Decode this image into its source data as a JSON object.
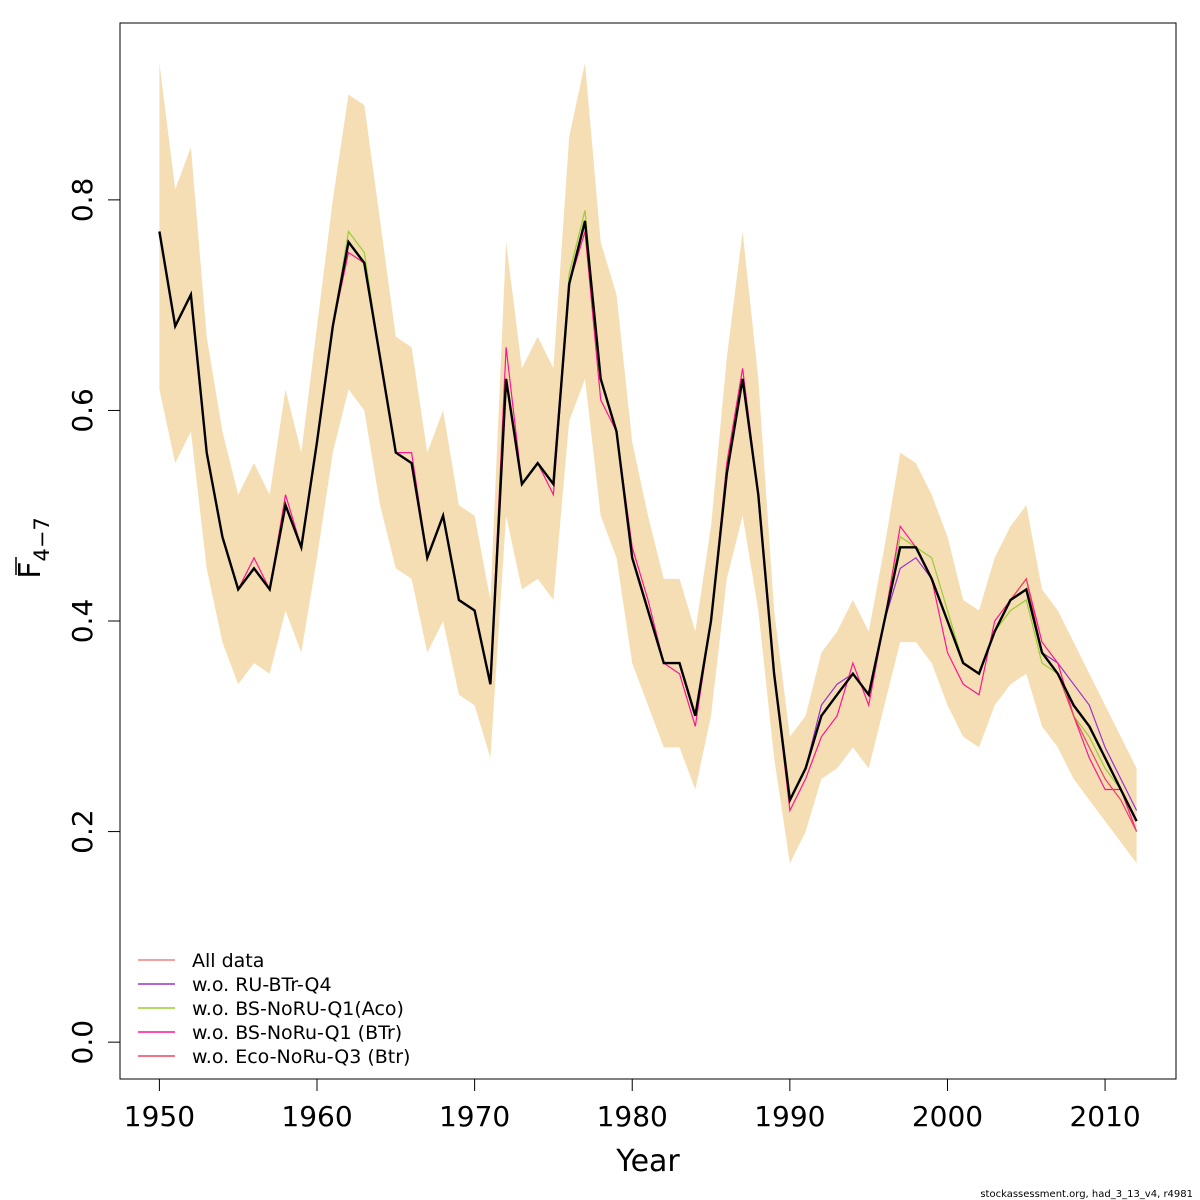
{
  "chart_data": {
    "type": "line",
    "xlabel": "Year",
    "ylabel": "F",
    "ylabel_subscript": "4−7",
    "xlim": [
      1947.5,
      2014.5
    ],
    "ylim": [
      -0.035,
      0.968
    ],
    "xticks": [
      1950,
      1960,
      1970,
      1980,
      1990,
      2000,
      2010
    ],
    "yticks": [
      0.0,
      0.2,
      0.4,
      0.6,
      0.8
    ],
    "ytick_labels": [
      "0.0",
      "0.2",
      "0.4",
      "0.6",
      "0.8"
    ],
    "legend_position": "bottom-left",
    "footer": "stockassessment.org, had_3_13_v4, r4981",
    "years": [
      1950,
      1951,
      1952,
      1953,
      1954,
      1955,
      1956,
      1957,
      1958,
      1959,
      1960,
      1961,
      1962,
      1963,
      1964,
      1965,
      1966,
      1967,
      1968,
      1969,
      1970,
      1971,
      1972,
      1973,
      1974,
      1975,
      1976,
      1977,
      1978,
      1979,
      1980,
      1981,
      1982,
      1983,
      1984,
      1985,
      1986,
      1987,
      1988,
      1989,
      1990,
      1991,
      1992,
      1993,
      1994,
      1995,
      1996,
      1997,
      1998,
      1999,
      2000,
      2001,
      2002,
      2003,
      2004,
      2005,
      2006,
      2007,
      2008,
      2009,
      2010,
      2011,
      2012
    ],
    "band": {
      "color": "#F5DEB3",
      "upper": [
        0.93,
        0.81,
        0.85,
        0.67,
        0.58,
        0.52,
        0.55,
        0.52,
        0.62,
        0.56,
        0.68,
        0.8,
        0.9,
        0.89,
        0.78,
        0.67,
        0.66,
        0.56,
        0.6,
        0.51,
        0.5,
        0.42,
        0.76,
        0.64,
        0.67,
        0.64,
        0.86,
        0.93,
        0.76,
        0.71,
        0.57,
        0.5,
        0.44,
        0.44,
        0.39,
        0.49,
        0.65,
        0.77,
        0.63,
        0.41,
        0.29,
        0.31,
        0.37,
        0.39,
        0.42,
        0.39,
        0.47,
        0.56,
        0.55,
        0.52,
        0.48,
        0.42,
        0.41,
        0.46,
        0.49,
        0.51,
        0.43,
        0.41,
        0.38,
        0.35,
        0.32,
        0.29,
        0.26
      ],
      "lower": [
        0.62,
        0.55,
        0.58,
        0.45,
        0.38,
        0.34,
        0.36,
        0.35,
        0.41,
        0.37,
        0.46,
        0.56,
        0.62,
        0.6,
        0.51,
        0.45,
        0.44,
        0.37,
        0.4,
        0.33,
        0.32,
        0.27,
        0.5,
        0.43,
        0.44,
        0.42,
        0.59,
        0.63,
        0.5,
        0.46,
        0.36,
        0.32,
        0.28,
        0.28,
        0.24,
        0.31,
        0.44,
        0.5,
        0.41,
        0.27,
        0.17,
        0.2,
        0.25,
        0.26,
        0.28,
        0.26,
        0.32,
        0.38,
        0.38,
        0.36,
        0.32,
        0.29,
        0.28,
        0.32,
        0.34,
        0.35,
        0.3,
        0.28,
        0.25,
        0.23,
        0.21,
        0.19,
        0.17
      ]
    },
    "main_line": {
      "color": "#000000",
      "values": [
        0.77,
        0.68,
        0.71,
        0.56,
        0.48,
        0.43,
        0.45,
        0.43,
        0.51,
        0.47,
        0.57,
        0.68,
        0.76,
        0.74,
        0.65,
        0.56,
        0.55,
        0.46,
        0.5,
        0.42,
        0.41,
        0.34,
        0.63,
        0.53,
        0.55,
        0.53,
        0.72,
        0.78,
        0.63,
        0.58,
        0.46,
        0.41,
        0.36,
        0.36,
        0.31,
        0.4,
        0.54,
        0.63,
        0.52,
        0.35,
        0.23,
        0.26,
        0.31,
        0.33,
        0.35,
        0.33,
        0.4,
        0.47,
        0.47,
        0.44,
        0.4,
        0.36,
        0.35,
        0.39,
        0.42,
        0.43,
        0.37,
        0.35,
        0.32,
        0.3,
        0.27,
        0.24,
        0.21
      ]
    },
    "series": [
      {
        "name": "All data",
        "color": "#F08080",
        "values": [
          0.77,
          0.68,
          0.71,
          0.56,
          0.48,
          0.43,
          0.45,
          0.43,
          0.51,
          0.47,
          0.57,
          0.68,
          0.76,
          0.74,
          0.65,
          0.56,
          0.55,
          0.46,
          0.5,
          0.42,
          0.41,
          0.34,
          0.63,
          0.53,
          0.55,
          0.53,
          0.72,
          0.78,
          0.63,
          0.58,
          0.46,
          0.41,
          0.36,
          0.36,
          0.31,
          0.4,
          0.54,
          0.63,
          0.52,
          0.35,
          0.23,
          0.26,
          0.31,
          0.33,
          0.35,
          0.33,
          0.4,
          0.47,
          0.47,
          0.44,
          0.4,
          0.36,
          0.35,
          0.39,
          0.42,
          0.43,
          0.37,
          0.35,
          0.32,
          0.3,
          0.27,
          0.24,
          0.21
        ]
      },
      {
        "name": "w.o. RU-BTr-Q4",
        "color": "#9932CC",
        "values": [
          0.77,
          0.68,
          0.71,
          0.56,
          0.48,
          0.43,
          0.45,
          0.43,
          0.51,
          0.47,
          0.57,
          0.68,
          0.76,
          0.74,
          0.65,
          0.56,
          0.55,
          0.46,
          0.5,
          0.42,
          0.41,
          0.34,
          0.63,
          0.53,
          0.55,
          0.53,
          0.72,
          0.78,
          0.63,
          0.58,
          0.46,
          0.41,
          0.36,
          0.36,
          0.31,
          0.4,
          0.54,
          0.63,
          0.52,
          0.35,
          0.23,
          0.26,
          0.32,
          0.34,
          0.35,
          0.33,
          0.4,
          0.45,
          0.46,
          0.44,
          0.4,
          0.36,
          0.35,
          0.39,
          0.42,
          0.43,
          0.37,
          0.36,
          0.34,
          0.32,
          0.28,
          0.25,
          0.22
        ]
      },
      {
        "name": "w.o. BS-NoRU-Q1(Aco)",
        "color": "#9ACD32",
        "values": [
          0.77,
          0.68,
          0.71,
          0.56,
          0.48,
          0.43,
          0.45,
          0.43,
          0.51,
          0.47,
          0.57,
          0.68,
          0.77,
          0.75,
          0.65,
          0.56,
          0.55,
          0.46,
          0.5,
          0.42,
          0.41,
          0.34,
          0.63,
          0.53,
          0.55,
          0.53,
          0.73,
          0.79,
          0.63,
          0.58,
          0.46,
          0.41,
          0.36,
          0.36,
          0.31,
          0.4,
          0.54,
          0.63,
          0.52,
          0.35,
          0.23,
          0.26,
          0.31,
          0.33,
          0.35,
          0.33,
          0.4,
          0.48,
          0.47,
          0.46,
          0.41,
          0.36,
          0.35,
          0.39,
          0.41,
          0.42,
          0.36,
          0.35,
          0.31,
          0.29,
          0.26,
          0.24,
          0.21
        ]
      },
      {
        "name": "w.o. BS-NoRu-Q1 (BTr)",
        "color": "#FF1493",
        "values": [
          0.77,
          0.68,
          0.71,
          0.56,
          0.48,
          0.43,
          0.46,
          0.43,
          0.52,
          0.47,
          0.57,
          0.68,
          0.75,
          0.74,
          0.65,
          0.56,
          0.56,
          0.46,
          0.5,
          0.42,
          0.41,
          0.34,
          0.66,
          0.53,
          0.55,
          0.52,
          0.72,
          0.77,
          0.61,
          0.58,
          0.47,
          0.42,
          0.36,
          0.35,
          0.3,
          0.4,
          0.55,
          0.64,
          0.52,
          0.35,
          0.22,
          0.25,
          0.29,
          0.31,
          0.36,
          0.32,
          0.4,
          0.49,
          0.47,
          0.44,
          0.37,
          0.34,
          0.33,
          0.4,
          0.42,
          0.44,
          0.38,
          0.36,
          0.31,
          0.27,
          0.24,
          0.24,
          0.2
        ]
      },
      {
        "name": "w.o. Eco-NoRu-Q3 (Btr)",
        "color": "#E8475F",
        "values": [
          0.77,
          0.68,
          0.71,
          0.56,
          0.48,
          0.43,
          0.45,
          0.43,
          0.51,
          0.47,
          0.57,
          0.68,
          0.76,
          0.74,
          0.65,
          0.56,
          0.55,
          0.46,
          0.5,
          0.42,
          0.41,
          0.34,
          0.63,
          0.53,
          0.55,
          0.53,
          0.72,
          0.78,
          0.63,
          0.58,
          0.46,
          0.41,
          0.36,
          0.36,
          0.31,
          0.4,
          0.54,
          0.63,
          0.52,
          0.35,
          0.23,
          0.26,
          0.31,
          0.33,
          0.35,
          0.33,
          0.4,
          0.47,
          0.47,
          0.44,
          0.4,
          0.36,
          0.35,
          0.39,
          0.42,
          0.44,
          0.37,
          0.35,
          0.31,
          0.28,
          0.25,
          0.23,
          0.2
        ]
      }
    ]
  }
}
